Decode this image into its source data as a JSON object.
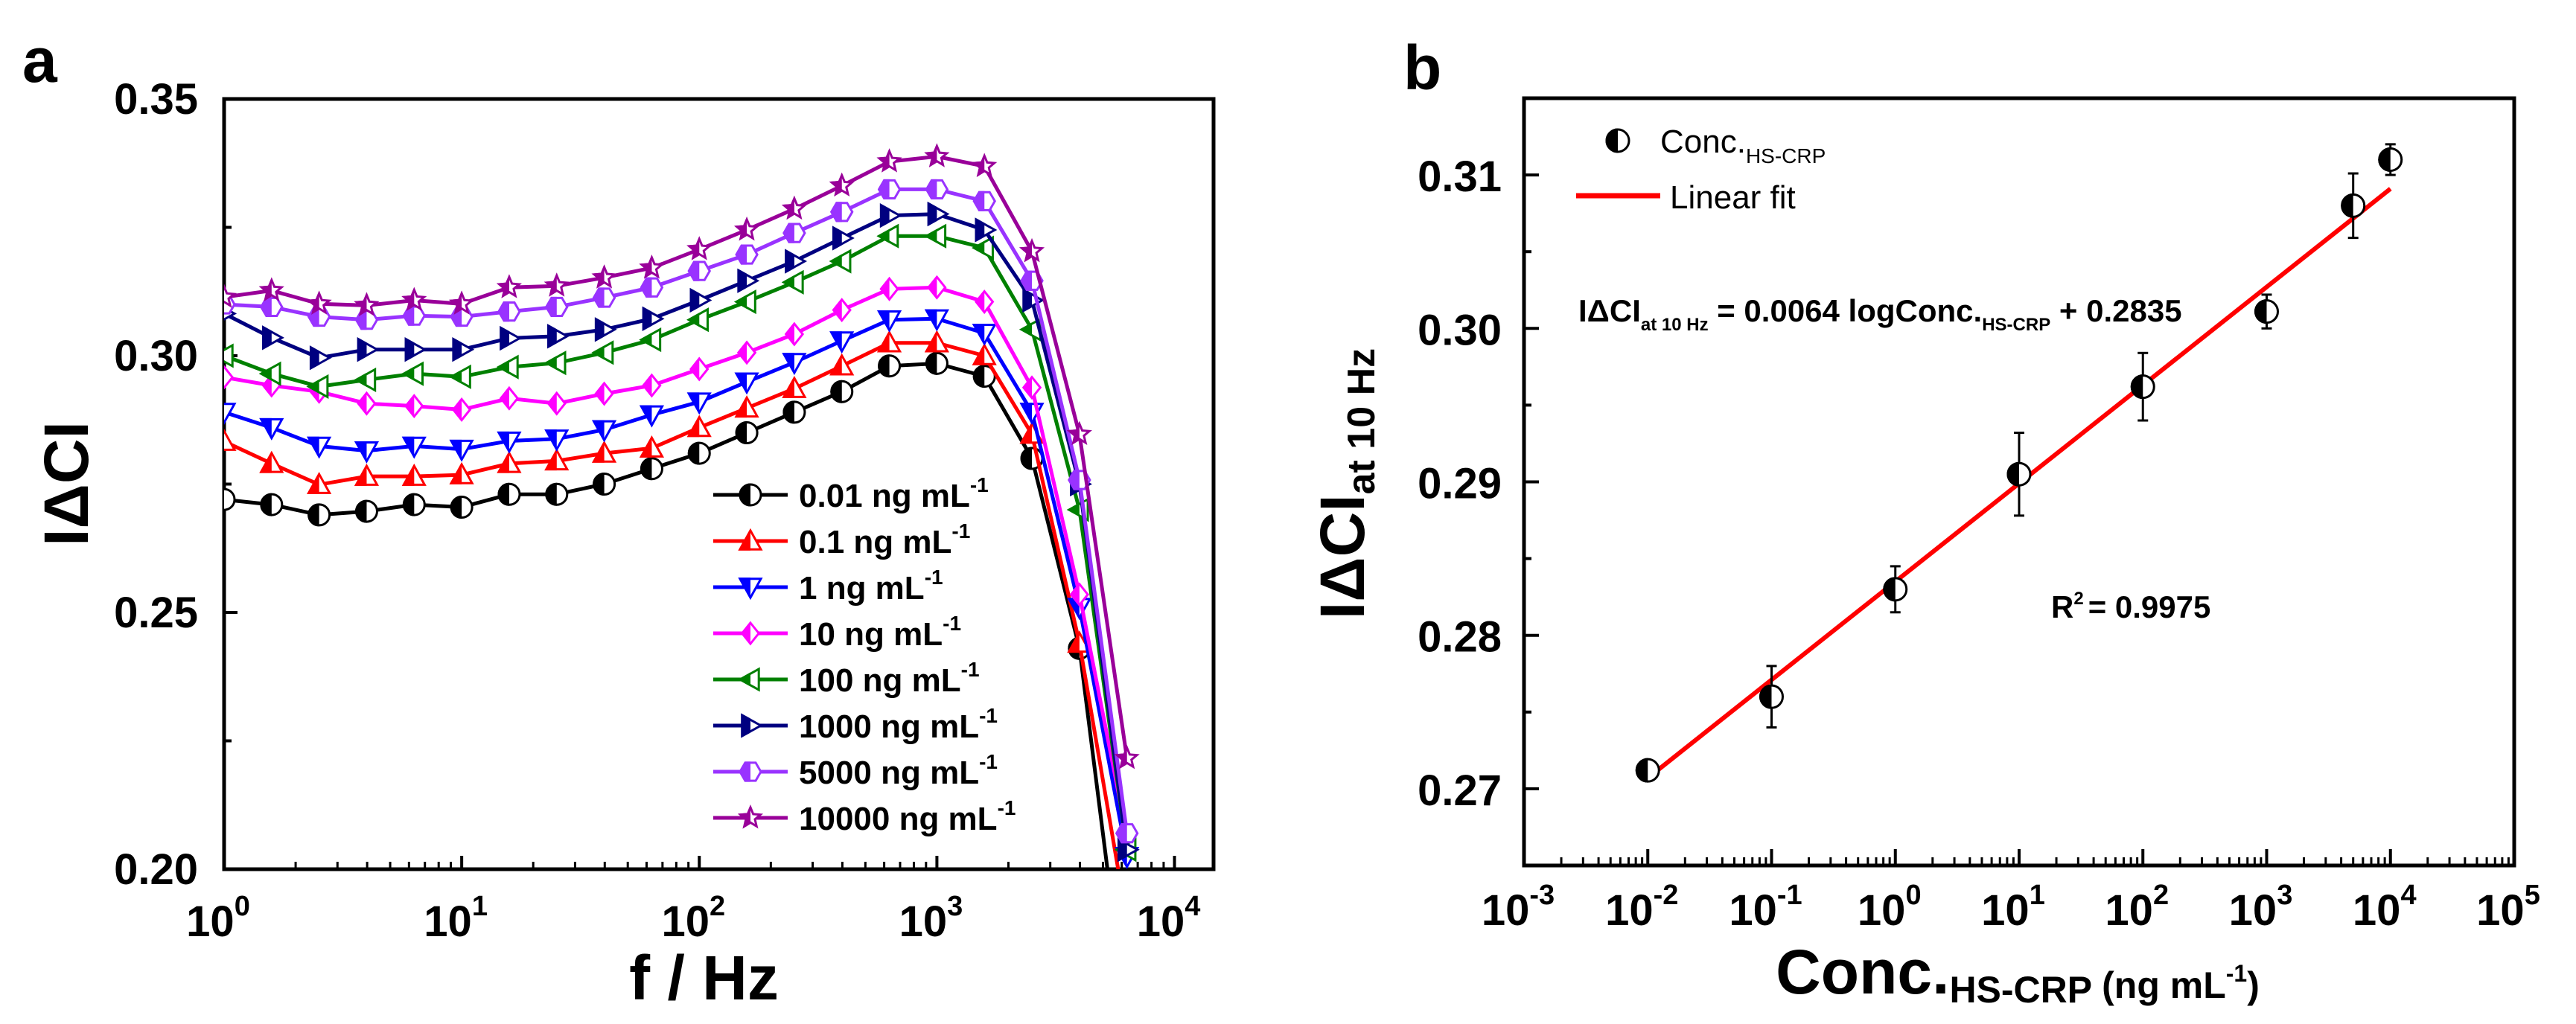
{
  "chart_data": [
    {
      "type": "line",
      "panel_label": "a",
      "xlabel": "f / Hz",
      "ylabel": "IΔCI",
      "xscale": "log",
      "xlim": [
        1,
        14600
      ],
      "ylim": [
        0.2,
        0.35
      ],
      "yticks": [
        "0.20",
        "0.25",
        "0.30",
        "0.35"
      ],
      "xticks": [
        {
          "base": "10",
          "exp": "0"
        },
        {
          "base": "10",
          "exp": "1"
        },
        {
          "base": "10",
          "exp": "2"
        },
        {
          "base": "10",
          "exp": "3"
        },
        {
          "base": "10",
          "exp": "4"
        }
      ],
      "legend_position": "bottom-center",
      "x": [
        1,
        1.585,
        2.512,
        3.981,
        6.31,
        10,
        15.85,
        25.12,
        39.81,
        63.1,
        100,
        158.5,
        251.2,
        398.1,
        631,
        1000,
        1585,
        2512,
        3981,
        6310
      ],
      "series": [
        {
          "name": "0.01 ng mL",
          "sup": "-1",
          "color": "#000000",
          "marker": "circle",
          "values": [
            0.272,
            0.271,
            0.269,
            0.2697,
            0.271,
            0.2705,
            0.273,
            0.273,
            0.275,
            0.278,
            0.281,
            0.285,
            0.289,
            0.293,
            0.298,
            0.2985,
            0.296,
            0.28,
            0.243,
            0.17
          ]
        },
        {
          "name": "0.1 ng mL",
          "sup": "-1",
          "color": "#ff0000",
          "marker": "triangle-up",
          "values": [
            0.2833,
            0.279,
            0.2749,
            0.2765,
            0.2765,
            0.2768,
            0.279,
            0.2795,
            0.281,
            0.282,
            0.286,
            0.2898,
            0.2936,
            0.298,
            0.3025,
            0.3025,
            0.3,
            0.2847,
            0.244,
            0.19
          ]
        },
        {
          "name": "1 ng mL",
          "sup": "-1",
          "color": "#0000ff",
          "marker": "triangle-down",
          "values": [
            0.289,
            0.286,
            0.2824,
            0.2815,
            0.2824,
            0.2818,
            0.2834,
            0.2838,
            0.2856,
            0.2885,
            0.291,
            0.2949,
            0.2987,
            0.3029,
            0.307,
            0.3072,
            0.3044,
            0.289,
            0.251,
            0.2025
          ]
        },
        {
          "name": "10 ng mL",
          "sup": "-1",
          "color": "#ff00ff",
          "marker": "diamond",
          "values": [
            0.2958,
            0.2942,
            0.293,
            0.2907,
            0.2902,
            0.2895,
            0.2917,
            0.2907,
            0.2926,
            0.2942,
            0.2974,
            0.3006,
            0.3042,
            0.3089,
            0.313,
            0.3133,
            0.3105,
            0.2938,
            0.2535,
            0.2064
          ]
        },
        {
          "name": "100 ng mL",
          "sup": "-1",
          "color": "#008000",
          "marker": "triangle-left",
          "values": [
            0.3,
            0.2965,
            0.294,
            0.2953,
            0.2965,
            0.2959,
            0.2978,
            0.2986,
            0.3006,
            0.3031,
            0.307,
            0.3105,
            0.3143,
            0.3184,
            0.3233,
            0.3233,
            0.321,
            0.3051,
            0.27,
            0.2038
          ]
        },
        {
          "name": "1000 ng mL",
          "sup": "-1",
          "color": "#000080",
          "marker": "triangle-right",
          "values": [
            0.3082,
            0.3035,
            0.2996,
            0.3012,
            0.3012,
            0.3012,
            0.3034,
            0.3038,
            0.3051,
            0.3072,
            0.3108,
            0.3146,
            0.3184,
            0.3229,
            0.3273,
            0.3276,
            0.3245,
            0.3108,
            0.275,
            0.2038
          ]
        },
        {
          "name": "5000 ng mL",
          "sup": "-1",
          "color": "#9933ff",
          "marker": "hexagon",
          "values": [
            0.31,
            0.3095,
            0.3076,
            0.307,
            0.3078,
            0.3076,
            0.3086,
            0.3095,
            0.3113,
            0.3133,
            0.3165,
            0.3197,
            0.3239,
            0.328,
            0.3324,
            0.3324,
            0.3301,
            0.3146,
            0.2758,
            0.207
          ]
        },
        {
          "name": "10000 ng mL",
          "sup": "-1",
          "color": "#990099",
          "marker": "star",
          "values": [
            0.3114,
            0.3127,
            0.3101,
            0.3098,
            0.3108,
            0.3101,
            0.3133,
            0.3136,
            0.3152,
            0.3171,
            0.3207,
            0.3245,
            0.3286,
            0.3331,
            0.3378,
            0.3388,
            0.3369,
            0.3203,
            0.2847,
            0.2216
          ]
        }
      ]
    },
    {
      "type": "scatter",
      "panel_label": "b",
      "ylabel": {
        "main": "IΔCI",
        "sub": "at 10 Hz"
      },
      "xlabel": {
        "main": "Conc.",
        "sub": "HS-CRP",
        "unit": " (ng mL",
        "sup": "-1",
        "close": ")"
      },
      "xscale": "log",
      "xlim": [
        0.001,
        100000
      ],
      "ylim": [
        0.265,
        0.315
      ],
      "yticks": [
        "0.27",
        "0.28",
        "0.29",
        "0.30",
        "0.31"
      ],
      "xticks": [
        {
          "base": "10",
          "exp": "-3"
        },
        {
          "base": "10",
          "exp": "-2"
        },
        {
          "base": "10",
          "exp": "-1"
        },
        {
          "base": "10",
          "exp": "0"
        },
        {
          "base": "10",
          "exp": "1"
        },
        {
          "base": "10",
          "exp": "2"
        },
        {
          "base": "10",
          "exp": "3"
        },
        {
          "base": "10",
          "exp": "4"
        },
        {
          "base": "10",
          "exp": "5"
        }
      ],
      "legend_position": "top-left",
      "legend": [
        {
          "main": "Conc.",
          "sub": "HS-CRP"
        },
        {
          "main": "Linear fit"
        }
      ],
      "points": {
        "x": [
          0.01,
          0.1,
          1,
          10,
          100,
          1000,
          5000,
          10000
        ],
        "y": [
          0.2712,
          0.276,
          0.283,
          0.2905,
          0.2962,
          0.3011,
          0.308,
          0.311
        ],
        "error": [
          0.0003,
          0.002,
          0.0015,
          0.0027,
          0.0022,
          0.0011,
          0.0021,
          0.001
        ]
      },
      "fit": {
        "slope": 0.0064,
        "intercept": 0.2835,
        "x_range": [
          0.01,
          10000
        ],
        "color": "#ff0000"
      },
      "equation": {
        "lhs": "IΔCI",
        "lhs_sub": "at 10 Hz",
        "mid": " = 0.0064 logConc.",
        "mid_sub": "HS-CRP",
        "rhs": " + 0.2835"
      },
      "r2": {
        "label": "R",
        "sup": "2",
        "value": "= 0.9975"
      }
    }
  ]
}
